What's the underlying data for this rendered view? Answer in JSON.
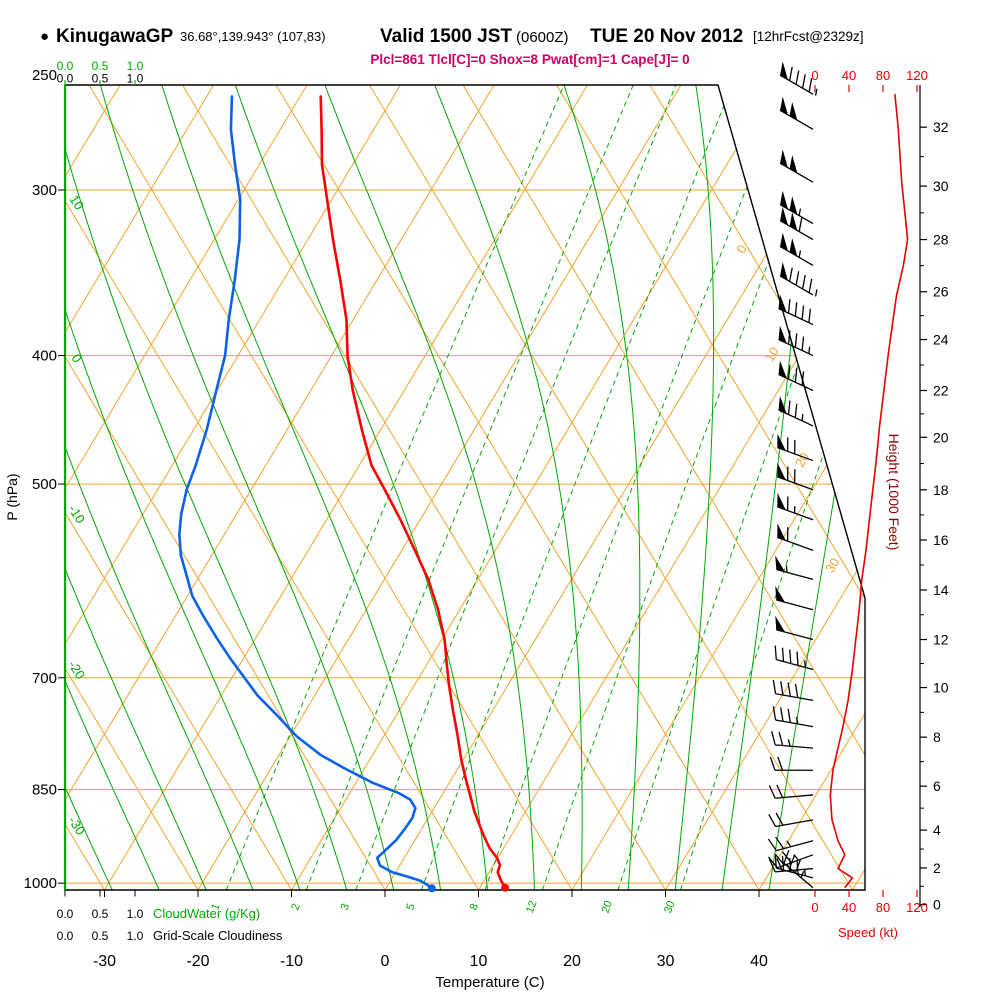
{
  "header": {
    "marker": "●",
    "station": "KinugawaGP",
    "coords": "36.68°,139.943° (107,83)",
    "valid_label": "Valid 1500 JST",
    "zulu": "(0600Z)",
    "date": "TUE 20 Nov 2012",
    "fcst": "[12hrFcst@2329z]"
  },
  "stats_line": "Plcl=861  Tlcl[C]=0  Shox=8  Pwat[cm]=1  Cape[J]= 0",
  "axes": {
    "pressure_label": "P (hPa)",
    "pressure_ticks": [
      250,
      300,
      400,
      500,
      700,
      850,
      1000
    ],
    "temp_label": "Temperature (C)",
    "temp_ticks": [
      -30,
      -20,
      -10,
      0,
      10,
      20,
      30,
      40
    ],
    "height_label": "Height (1000 Feet)",
    "speed_label": "Speed (kt)",
    "speed_ticks": [
      0,
      40,
      80,
      120
    ],
    "cloudwater_label": "CloudWater (g/Kg)",
    "cloudiness_label": "Grid-Scale Cloudiness",
    "cloud_scale": [
      "0.0",
      "0.5",
      "1.0"
    ]
  },
  "chart_data": {
    "type": "skewt_log_p",
    "pressure_range_hpa": [
      250,
      1012
    ],
    "pressure_gridlines": [
      300,
      400,
      500,
      700,
      850,
      1000
    ],
    "isotherm_step_c": 10,
    "dry_adiabat_step_c": 10,
    "moist_adiabat_step_c": 5,
    "mixing_ratio_lines_gkg": [
      1,
      2,
      3,
      5,
      8,
      12,
      20,
      30
    ],
    "left_edge_labels_c": [
      10,
      0,
      -10,
      -20,
      -30
    ],
    "right_edge_labels_c": [
      0,
      10,
      20,
      30
    ],
    "temperature_profile": [
      [
        255,
        -57.8
      ],
      [
        270,
        -55.6
      ],
      [
        287,
        -53.3
      ],
      [
        305,
        -50.5
      ],
      [
        327,
        -47.3
      ],
      [
        351,
        -43.9
      ],
      [
        376,
        -40.7
      ],
      [
        400,
        -38.3
      ],
      [
        425,
        -35.5
      ],
      [
        455,
        -32.0
      ],
      [
        484,
        -28.7
      ],
      [
        505,
        -25.7
      ],
      [
        532,
        -22.1
      ],
      [
        561,
        -18.6
      ],
      [
        590,
        -15.3
      ],
      [
        622,
        -12.3
      ],
      [
        655,
        -9.7
      ],
      [
        685,
        -7.8
      ],
      [
        709,
        -6.3
      ],
      [
        740,
        -4.3
      ],
      [
        773,
        -2.2
      ],
      [
        807,
        -0.2
      ],
      [
        836,
        1.6
      ],
      [
        858,
        3.0
      ],
      [
        881,
        4.4
      ],
      [
        899,
        5.6
      ],
      [
        920,
        7.0
      ],
      [
        941,
        8.5
      ],
      [
        957,
        9.9
      ],
      [
        969,
        10.7
      ],
      [
        981,
        10.9
      ],
      [
        994,
        11.7
      ],
      [
        1008,
        12.7
      ]
    ],
    "dewpoint_profile": [
      [
        255,
        -67.3
      ],
      [
        270,
        -65.3
      ],
      [
        287,
        -62.6
      ],
      [
        305,
        -59.8
      ],
      [
        327,
        -57.3
      ],
      [
        351,
        -55.2
      ],
      [
        376,
        -53.3
      ],
      [
        400,
        -51.4
      ],
      [
        425,
        -50.1
      ],
      [
        455,
        -48.6
      ],
      [
        484,
        -47.5
      ],
      [
        505,
        -46.9
      ],
      [
        527,
        -45.9
      ],
      [
        546,
        -44.8
      ],
      [
        566,
        -43.3
      ],
      [
        585,
        -41.5
      ],
      [
        607,
        -39.5
      ],
      [
        628,
        -37.1
      ],
      [
        653,
        -34.2
      ],
      [
        677,
        -31.4
      ],
      [
        697,
        -29.0
      ],
      [
        722,
        -26.1
      ],
      [
        746,
        -22.9
      ],
      [
        775,
        -19.3
      ],
      [
        800,
        -15.6
      ],
      [
        820,
        -12.0
      ],
      [
        840,
        -8.2
      ],
      [
        855,
        -4.8
      ],
      [
        865,
        -3.1
      ],
      [
        878,
        -2.0
      ],
      [
        893,
        -1.7
      ],
      [
        910,
        -1.8
      ],
      [
        928,
        -2.0
      ],
      [
        944,
        -2.5
      ],
      [
        957,
        -2.9
      ],
      [
        970,
        -2.1
      ],
      [
        981,
        -0.4
      ],
      [
        989,
        1.6
      ],
      [
        996,
        3.2
      ],
      [
        1003,
        4.2
      ],
      [
        1009,
        4.9
      ]
    ],
    "wind_profile": [
      [
        254,
        94,
        300
      ],
      [
        270,
        98,
        300
      ],
      [
        296,
        102,
        300
      ],
      [
        318,
        107,
        300
      ],
      [
        327,
        109,
        300
      ],
      [
        342,
        104,
        300
      ],
      [
        360,
        96,
        300
      ],
      [
        379,
        91,
        295
      ],
      [
        400,
        86,
        295
      ],
      [
        425,
        81,
        295
      ],
      [
        452,
        76,
        295
      ],
      [
        480,
        72,
        290
      ],
      [
        505,
        68,
        290
      ],
      [
        532,
        64,
        290
      ],
      [
        561,
        60,
        290
      ],
      [
        590,
        55,
        285
      ],
      [
        622,
        52,
        285
      ],
      [
        655,
        48,
        285
      ],
      [
        690,
        44,
        285
      ],
      [
        728,
        39,
        280
      ],
      [
        762,
        33,
        280
      ],
      [
        791,
        27,
        275
      ],
      [
        822,
        21,
        270
      ],
      [
        858,
        18,
        265
      ],
      [
        896,
        20,
        260
      ],
      [
        929,
        27,
        255
      ],
      [
        952,
        35,
        250
      ],
      [
        975,
        27,
        265
      ],
      [
        991,
        44,
        285
      ],
      [
        1008,
        35,
        310
      ]
    ],
    "height_scale_kft_hpa": [
      [
        0,
        1038
      ],
      [
        2,
        974
      ],
      [
        4,
        912
      ],
      [
        6,
        845
      ],
      [
        8,
        776
      ],
      [
        10,
        712
      ],
      [
        12,
        655
      ],
      [
        14,
        601
      ],
      [
        16,
        551
      ],
      [
        18,
        505
      ],
      [
        20,
        461
      ],
      [
        22,
        425
      ],
      [
        24,
        389
      ],
      [
        26,
        358
      ],
      [
        28,
        327
      ],
      [
        30,
        298
      ],
      [
        32,
        269
      ]
    ],
    "colors": {
      "grid_orange": "#f2a32e",
      "green": "#00a900",
      "temp_red": "#ff0000",
      "dewpoint_blue": "#0b62e8",
      "stats_magenta": "#cc0066",
      "speed_red": "#e60000",
      "height_maroon": "#8b0000",
      "barb_black": "#000000"
    }
  }
}
